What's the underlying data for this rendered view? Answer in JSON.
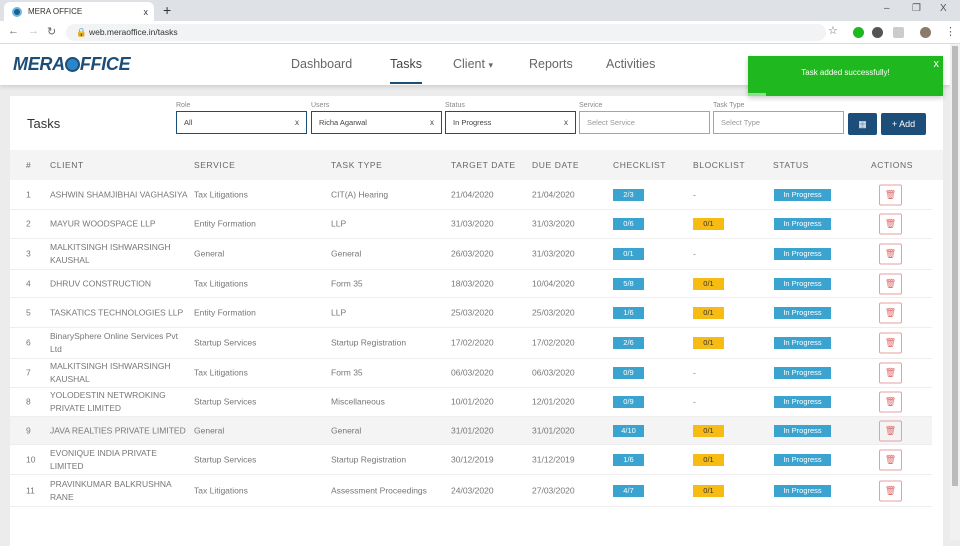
{
  "browser": {
    "tab_title": "MERA OFFICE",
    "tab_close": "x",
    "new_tab": "+",
    "url": "web.meraoffice.in/tasks",
    "win_min": "–",
    "win_max": "❐",
    "win_close": "X"
  },
  "app": {
    "logo": "MERA OFFICE",
    "logo_left": "MERA",
    "logo_right": "FFICE",
    "nav": [
      "Dashboard",
      "Tasks",
      "Client",
      "Reports",
      "Activities"
    ],
    "client_caret": "▾"
  },
  "toast": {
    "message": "Task added successfully!",
    "close": "x",
    "color": "#1fb81f"
  },
  "page": {
    "title": "Tasks",
    "filters": [
      {
        "label": "Role",
        "value": "All",
        "clear": "x"
      },
      {
        "label": "Users",
        "value": "Richa Agarwal",
        "clear": "x"
      },
      {
        "label": "Status",
        "value": "In Progress",
        "clear": "x"
      },
      {
        "label": "Service",
        "placeholder": "Select Service"
      },
      {
        "label": "Task Type",
        "placeholder": "Select Type"
      }
    ],
    "add_label": "+ Add"
  },
  "table": {
    "headers": [
      "#",
      "CLIENT",
      "SERVICE",
      "TASK TYPE",
      "TARGET DATE",
      "DUE DATE",
      "CHECKLIST",
      "BLOCKLIST",
      "STATUS",
      "ACTIONS"
    ],
    "rows": [
      {
        "n": "1",
        "client": "ASHWIN SHAMJIBHAI VAGHASIYA",
        "service": "Tax Litigations",
        "type": "CIT(A) Hearing",
        "target": "21/04/2020",
        "due": "21/04/2020",
        "check": "2/3",
        "block": "-",
        "status": "In Progress"
      },
      {
        "n": "2",
        "client": "MAYUR WOODSPACE LLP",
        "service": "Entity Formation",
        "type": "LLP",
        "target": "31/03/2020",
        "due": "31/03/2020",
        "check": "0/6",
        "block": "0/1",
        "status": "In Progress"
      },
      {
        "n": "3",
        "client": "MALKITSINGH ISHWARSINGH KAUSHAL",
        "service": "General",
        "type": "General",
        "target": "26/03/2020",
        "due": "31/03/2020",
        "check": "0/1",
        "block": "-",
        "status": "In Progress"
      },
      {
        "n": "4",
        "client": "DHRUV CONSTRUCTION",
        "service": "Tax Litigations",
        "type": "Form 35",
        "target": "18/03/2020",
        "due": "10/04/2020",
        "check": "5/8",
        "block": "0/1",
        "status": "In Progress"
      },
      {
        "n": "5",
        "client": "TASKATICS TECHNOLOGIES LLP",
        "service": "Entity Formation",
        "type": "LLP",
        "target": "25/03/2020",
        "due": "25/03/2020",
        "check": "1/6",
        "block": "0/1",
        "status": "In Progress"
      },
      {
        "n": "6",
        "client": "BinarySphere Online Services Pvt Ltd",
        "service": "Startup Services",
        "type": "Startup Registration",
        "target": "17/02/2020",
        "due": "17/02/2020",
        "check": "2/6",
        "block": "0/1",
        "status": "In Progress"
      },
      {
        "n": "7",
        "client": "MALKITSINGH ISHWARSINGH KAUSHAL",
        "service": "Tax Litigations",
        "type": "Form 35",
        "target": "06/03/2020",
        "due": "06/03/2020",
        "check": "0/9",
        "block": "-",
        "status": "In Progress"
      },
      {
        "n": "8",
        "client": "YOLODESTIN NETWROKING PRIVATE LIMITED",
        "service": "Startup Services",
        "type": "Miscellaneous",
        "target": "10/01/2020",
        "due": "12/01/2020",
        "check": "0/9",
        "block": "-",
        "status": "In Progress"
      },
      {
        "n": "9",
        "client": "JAVA REALTIES PRIVATE LIMITED",
        "service": "General",
        "type": "General",
        "target": "31/01/2020",
        "due": "31/01/2020",
        "check": "4/10",
        "block": "0/1",
        "status": "In Progress"
      },
      {
        "n": "10",
        "client": "EVONIQUE INDIA PRIVATE LIMITED",
        "service": "Startup Services",
        "type": "Startup Registration",
        "target": "30/12/2019",
        "due": "31/12/2019",
        "check": "1/6",
        "block": "0/1",
        "status": "In Progress"
      },
      {
        "n": "11",
        "client": "PRAVINKUMAR BALKRUSHNA RANE",
        "service": "Tax Litigations",
        "type": "Assessment Proceedings",
        "target": "24/03/2020",
        "due": "27/03/2020",
        "check": "4/7",
        "block": "0/1",
        "status": "In Progress"
      }
    ]
  }
}
